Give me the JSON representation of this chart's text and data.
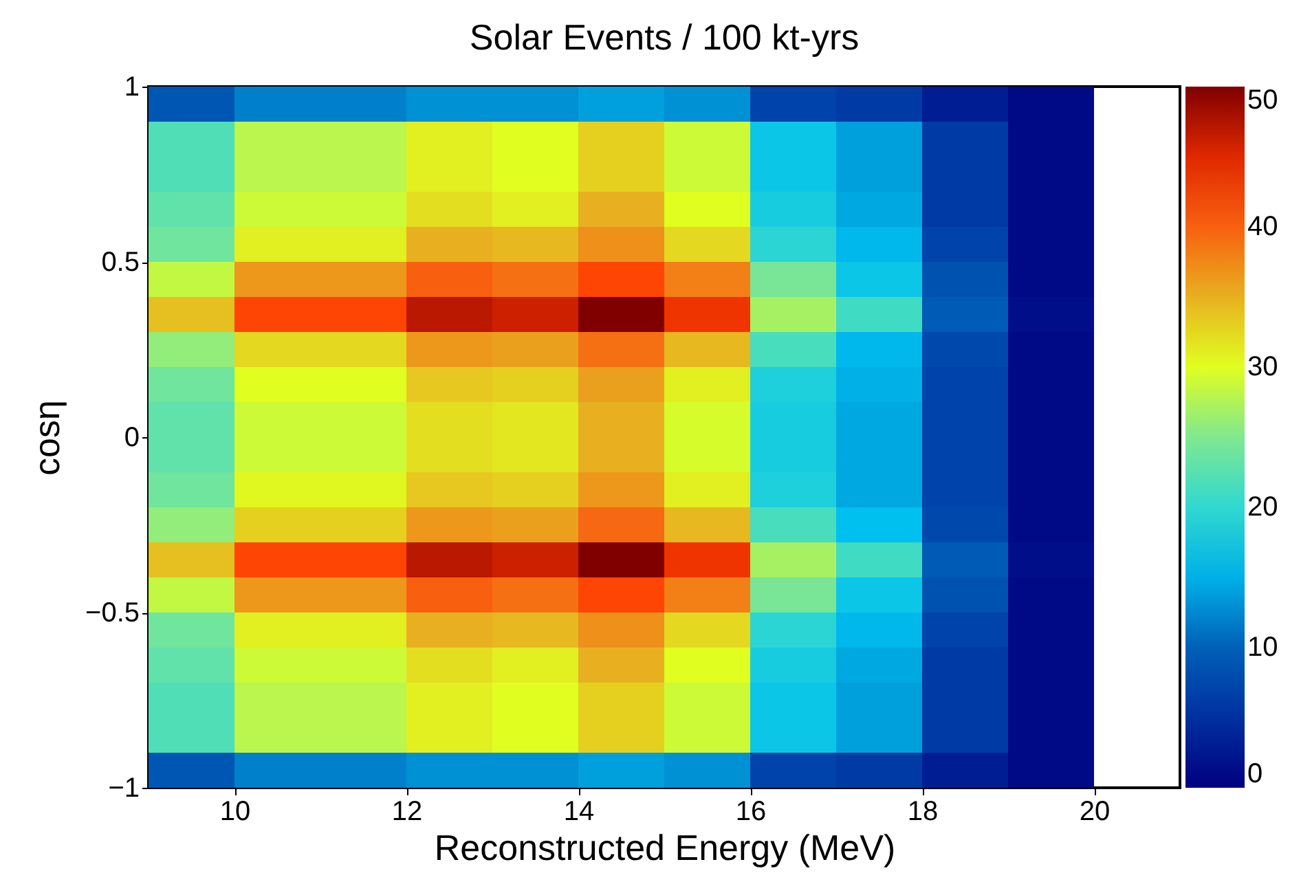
{
  "chart_data": {
    "type": "heatmap",
    "title": "Solar Events / 100 kt-yrs",
    "xlabel": "Reconstructed Energy (MeV)",
    "ylabel": "cosη",
    "x": [
      9.5,
      10.5,
      11.5,
      12.5,
      13.5,
      14.5,
      15.5,
      16.5,
      17.5,
      18.5,
      19.5,
      20.5
    ],
    "xlim": [
      9,
      21
    ],
    "xticks": [
      10,
      12,
      14,
      16,
      18,
      20
    ],
    "ylim": [
      -1,
      1
    ],
    "yticks": [
      {
        "value": -1,
        "label": "−1"
      },
      {
        "value": -0.5,
        "label": "−0.5"
      },
      0,
      0.5,
      1
    ],
    "clim": [
      0,
      50
    ],
    "cticks": [
      0,
      10,
      20,
      30,
      40,
      50
    ],
    "cells": [
      [
        9,
        12,
        12,
        13,
        13,
        14,
        13,
        7,
        6,
        3,
        1,
        null
      ],
      [
        22,
        28,
        28,
        31,
        30,
        33,
        29,
        17,
        14,
        6,
        1,
        null
      ],
      [
        22,
        28,
        28,
        31,
        30,
        33,
        29,
        17,
        14,
        6,
        1,
        null
      ],
      [
        23,
        29,
        29,
        32,
        31,
        35,
        30,
        18,
        14.5,
        6,
        1,
        null
      ],
      [
        24,
        31,
        31,
        35,
        34.5,
        37,
        32.5,
        19.5,
        15.5,
        7,
        1,
        null
      ],
      [
        28.5,
        36.5,
        36.5,
        40,
        39,
        42.5,
        38,
        24.5,
        17,
        8.5,
        1,
        null
      ],
      [
        34,
        42.5,
        42.5,
        47,
        46,
        50,
        44,
        27,
        21,
        9.5,
        1.5,
        null
      ],
      [
        26,
        32.5,
        32.5,
        36.5,
        36,
        39,
        34.5,
        21.5,
        15.5,
        7.5,
        1,
        null
      ],
      [
        24,
        30,
        30,
        33.5,
        33,
        36,
        31,
        18.5,
        15,
        7,
        1,
        null
      ],
      [
        23,
        29,
        29,
        32,
        31.5,
        35,
        29.5,
        18,
        14.5,
        7,
        1,
        null
      ],
      [
        23,
        29,
        29,
        32,
        31.5,
        35,
        29.5,
        18,
        14.5,
        7,
        1,
        null
      ],
      [
        24,
        30.5,
        30.5,
        33.5,
        33,
        36.5,
        31,
        18.5,
        14.5,
        7,
        1,
        null
      ],
      [
        26,
        33,
        33,
        36.5,
        36,
        39.5,
        34.5,
        21.5,
        16,
        7.5,
        1,
        null
      ],
      [
        34,
        42.5,
        42.5,
        47,
        46,
        50,
        44,
        27,
        21,
        9.5,
        1.5,
        null
      ],
      [
        28.5,
        36.5,
        36.5,
        40,
        39,
        42.5,
        38,
        24.5,
        17,
        8.5,
        1,
        null
      ],
      [
        24,
        31,
        31,
        35,
        34.5,
        37,
        32.5,
        19.5,
        15.5,
        7,
        1,
        null
      ],
      [
        23,
        29,
        29,
        32,
        31,
        35,
        30,
        18,
        14.5,
        6,
        1,
        null
      ],
      [
        22,
        28,
        28,
        31,
        30,
        33,
        29,
        17,
        14,
        6,
        1,
        null
      ],
      [
        22,
        28,
        28,
        31,
        30,
        33,
        29,
        17,
        14,
        6,
        1,
        null
      ],
      [
        9,
        12,
        12,
        13,
        13,
        14,
        13,
        7,
        6,
        3,
        1,
        null
      ]
    ]
  }
}
